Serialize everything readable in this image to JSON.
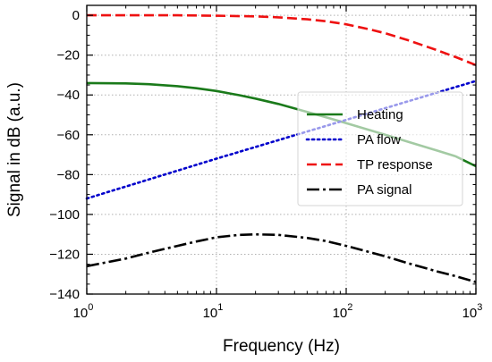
{
  "chart_data": {
    "type": "line",
    "title": "",
    "xlabel": "Frequency (Hz)",
    "ylabel": "Signal in dB (a.u.)",
    "xscale": "log",
    "xlim": [
      1,
      1000
    ],
    "ylim": [
      -140,
      5
    ],
    "grid": true,
    "legend_position": "center-right",
    "x_ticks": [
      {
        "value": 1,
        "base": "10",
        "exp": "0"
      },
      {
        "value": 10,
        "base": "10",
        "exp": "1"
      },
      {
        "value": 100,
        "base": "10",
        "exp": "2"
      },
      {
        "value": 1000,
        "base": "10",
        "exp": "3"
      }
    ],
    "y_ticks": [
      0,
      -20,
      -40,
      -60,
      -80,
      -100,
      -120,
      -140
    ],
    "y_tick_labels": [
      "0",
      "−20",
      "−40",
      "−60",
      "−80",
      "−100",
      "−120",
      "−140"
    ],
    "series": [
      {
        "name": "Heating",
        "color": "#1a7a1a",
        "style": "solid",
        "x": [
          1,
          2,
          3,
          5,
          7,
          10,
          15,
          20,
          30,
          50,
          70,
          100,
          200,
          300,
          500,
          700,
          1000
        ],
        "y": [
          -34,
          -34.2,
          -34.6,
          -35.6,
          -36.6,
          -38,
          -40.1,
          -41.8,
          -44.5,
          -48.5,
          -51.2,
          -54.1,
          -60,
          -63.5,
          -67.9,
          -70.8,
          -75.8
        ]
      },
      {
        "name": "PA flow",
        "color": "#0000cc",
        "style": "dotted",
        "x": [
          1,
          10,
          100,
          1000
        ],
        "y": [
          -92,
          -72,
          -52.5,
          -33
        ]
      },
      {
        "name": "TP response",
        "color": "#ee1111",
        "style": "dashed",
        "x": [
          1,
          5,
          10,
          20,
          30,
          50,
          70,
          100,
          150,
          200,
          300,
          500,
          700,
          1000
        ],
        "y": [
          0,
          0,
          -0.2,
          -0.5,
          -1,
          -2,
          -3,
          -4.5,
          -7,
          -9,
          -12.5,
          -17.5,
          -21,
          -25
        ]
      },
      {
        "name": "PA signal",
        "color": "#000000",
        "style": "dashdot",
        "x": [
          1,
          2,
          3,
          5,
          7,
          10,
          15,
          20,
          30,
          50,
          70,
          100,
          200,
          300,
          500,
          700,
          1000
        ],
        "y": [
          -126,
          -122.2,
          -119.2,
          -115.8,
          -113.6,
          -111.5,
          -110.3,
          -110,
          -110.3,
          -111.8,
          -113.4,
          -115.8,
          -121,
          -124.5,
          -128.6,
          -131,
          -134
        ]
      }
    ]
  }
}
